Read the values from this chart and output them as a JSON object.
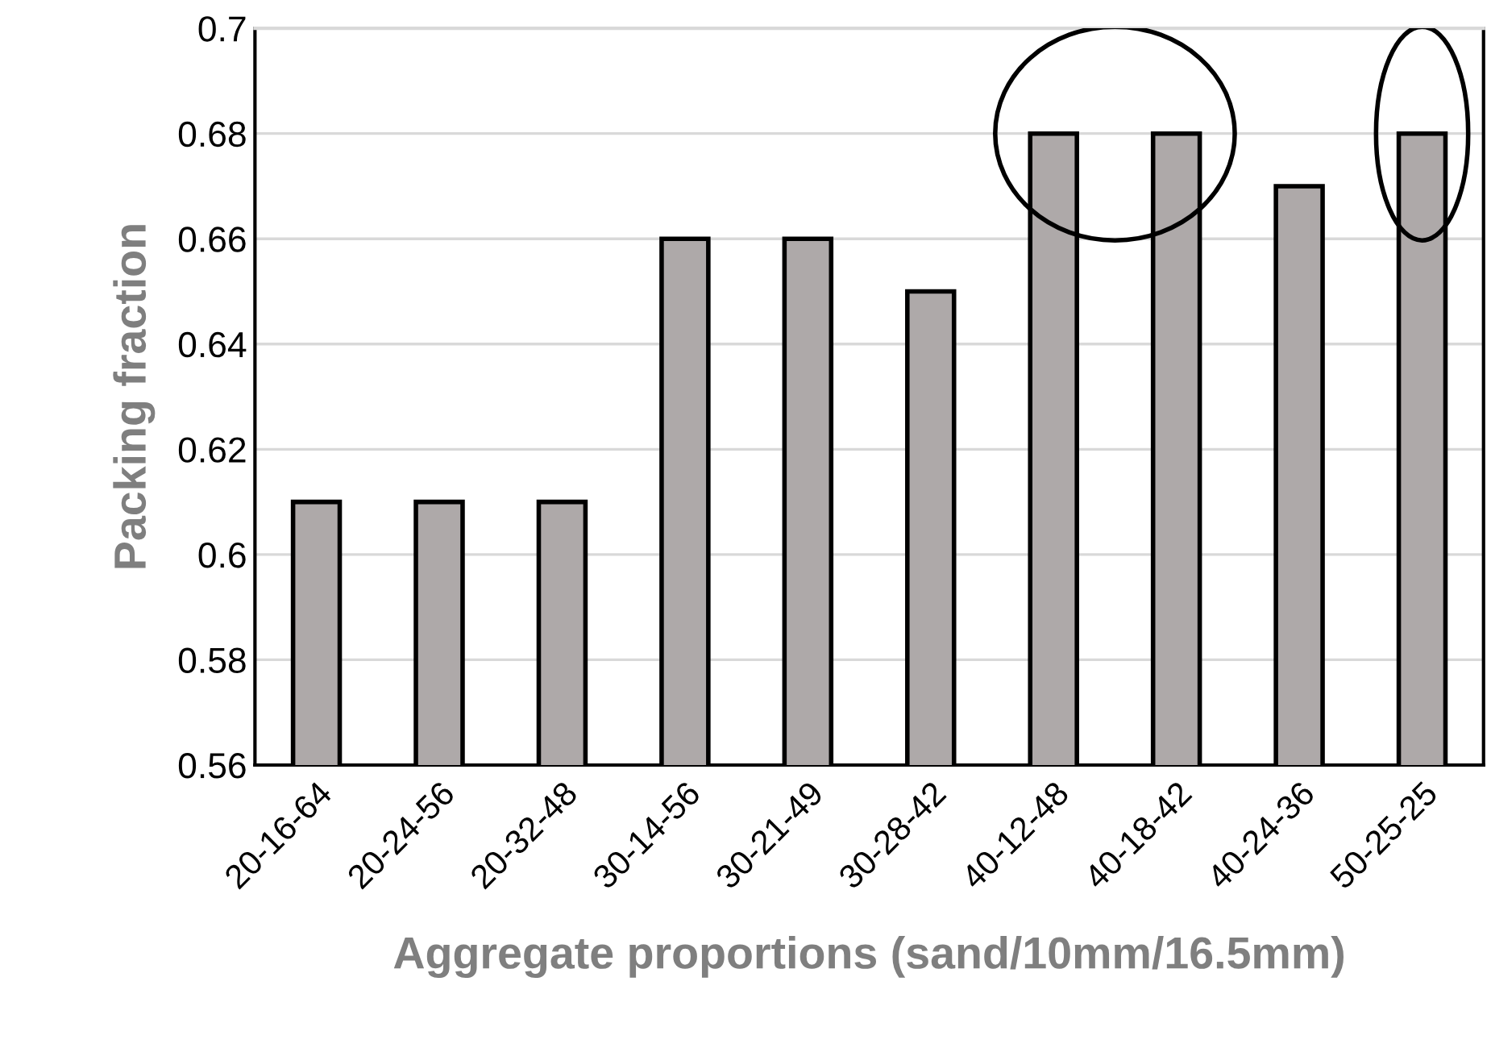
{
  "chart_data": {
    "type": "bar",
    "xlabel": "Aggregate proportions (sand/10mm/16.5mm)",
    "ylabel": "Packing fraction",
    "categories": [
      "20-16-64",
      "20-24-56",
      "20-32-48",
      "30-14-56",
      "30-21-49",
      "30-28-42",
      "40-12-48",
      "40-18-42",
      "40-24-36",
      "50-25-25"
    ],
    "values": [
      0.61,
      0.61,
      0.61,
      0.66,
      0.66,
      0.65,
      0.68,
      0.68,
      0.67,
      0.68
    ],
    "color": "#aea9a9",
    "ylim": [
      0.56,
      0.7
    ],
    "yticks": [
      0.56,
      0.58,
      0.6,
      0.62,
      0.64,
      0.66,
      0.68,
      0.7
    ],
    "grid": "y"
  }
}
